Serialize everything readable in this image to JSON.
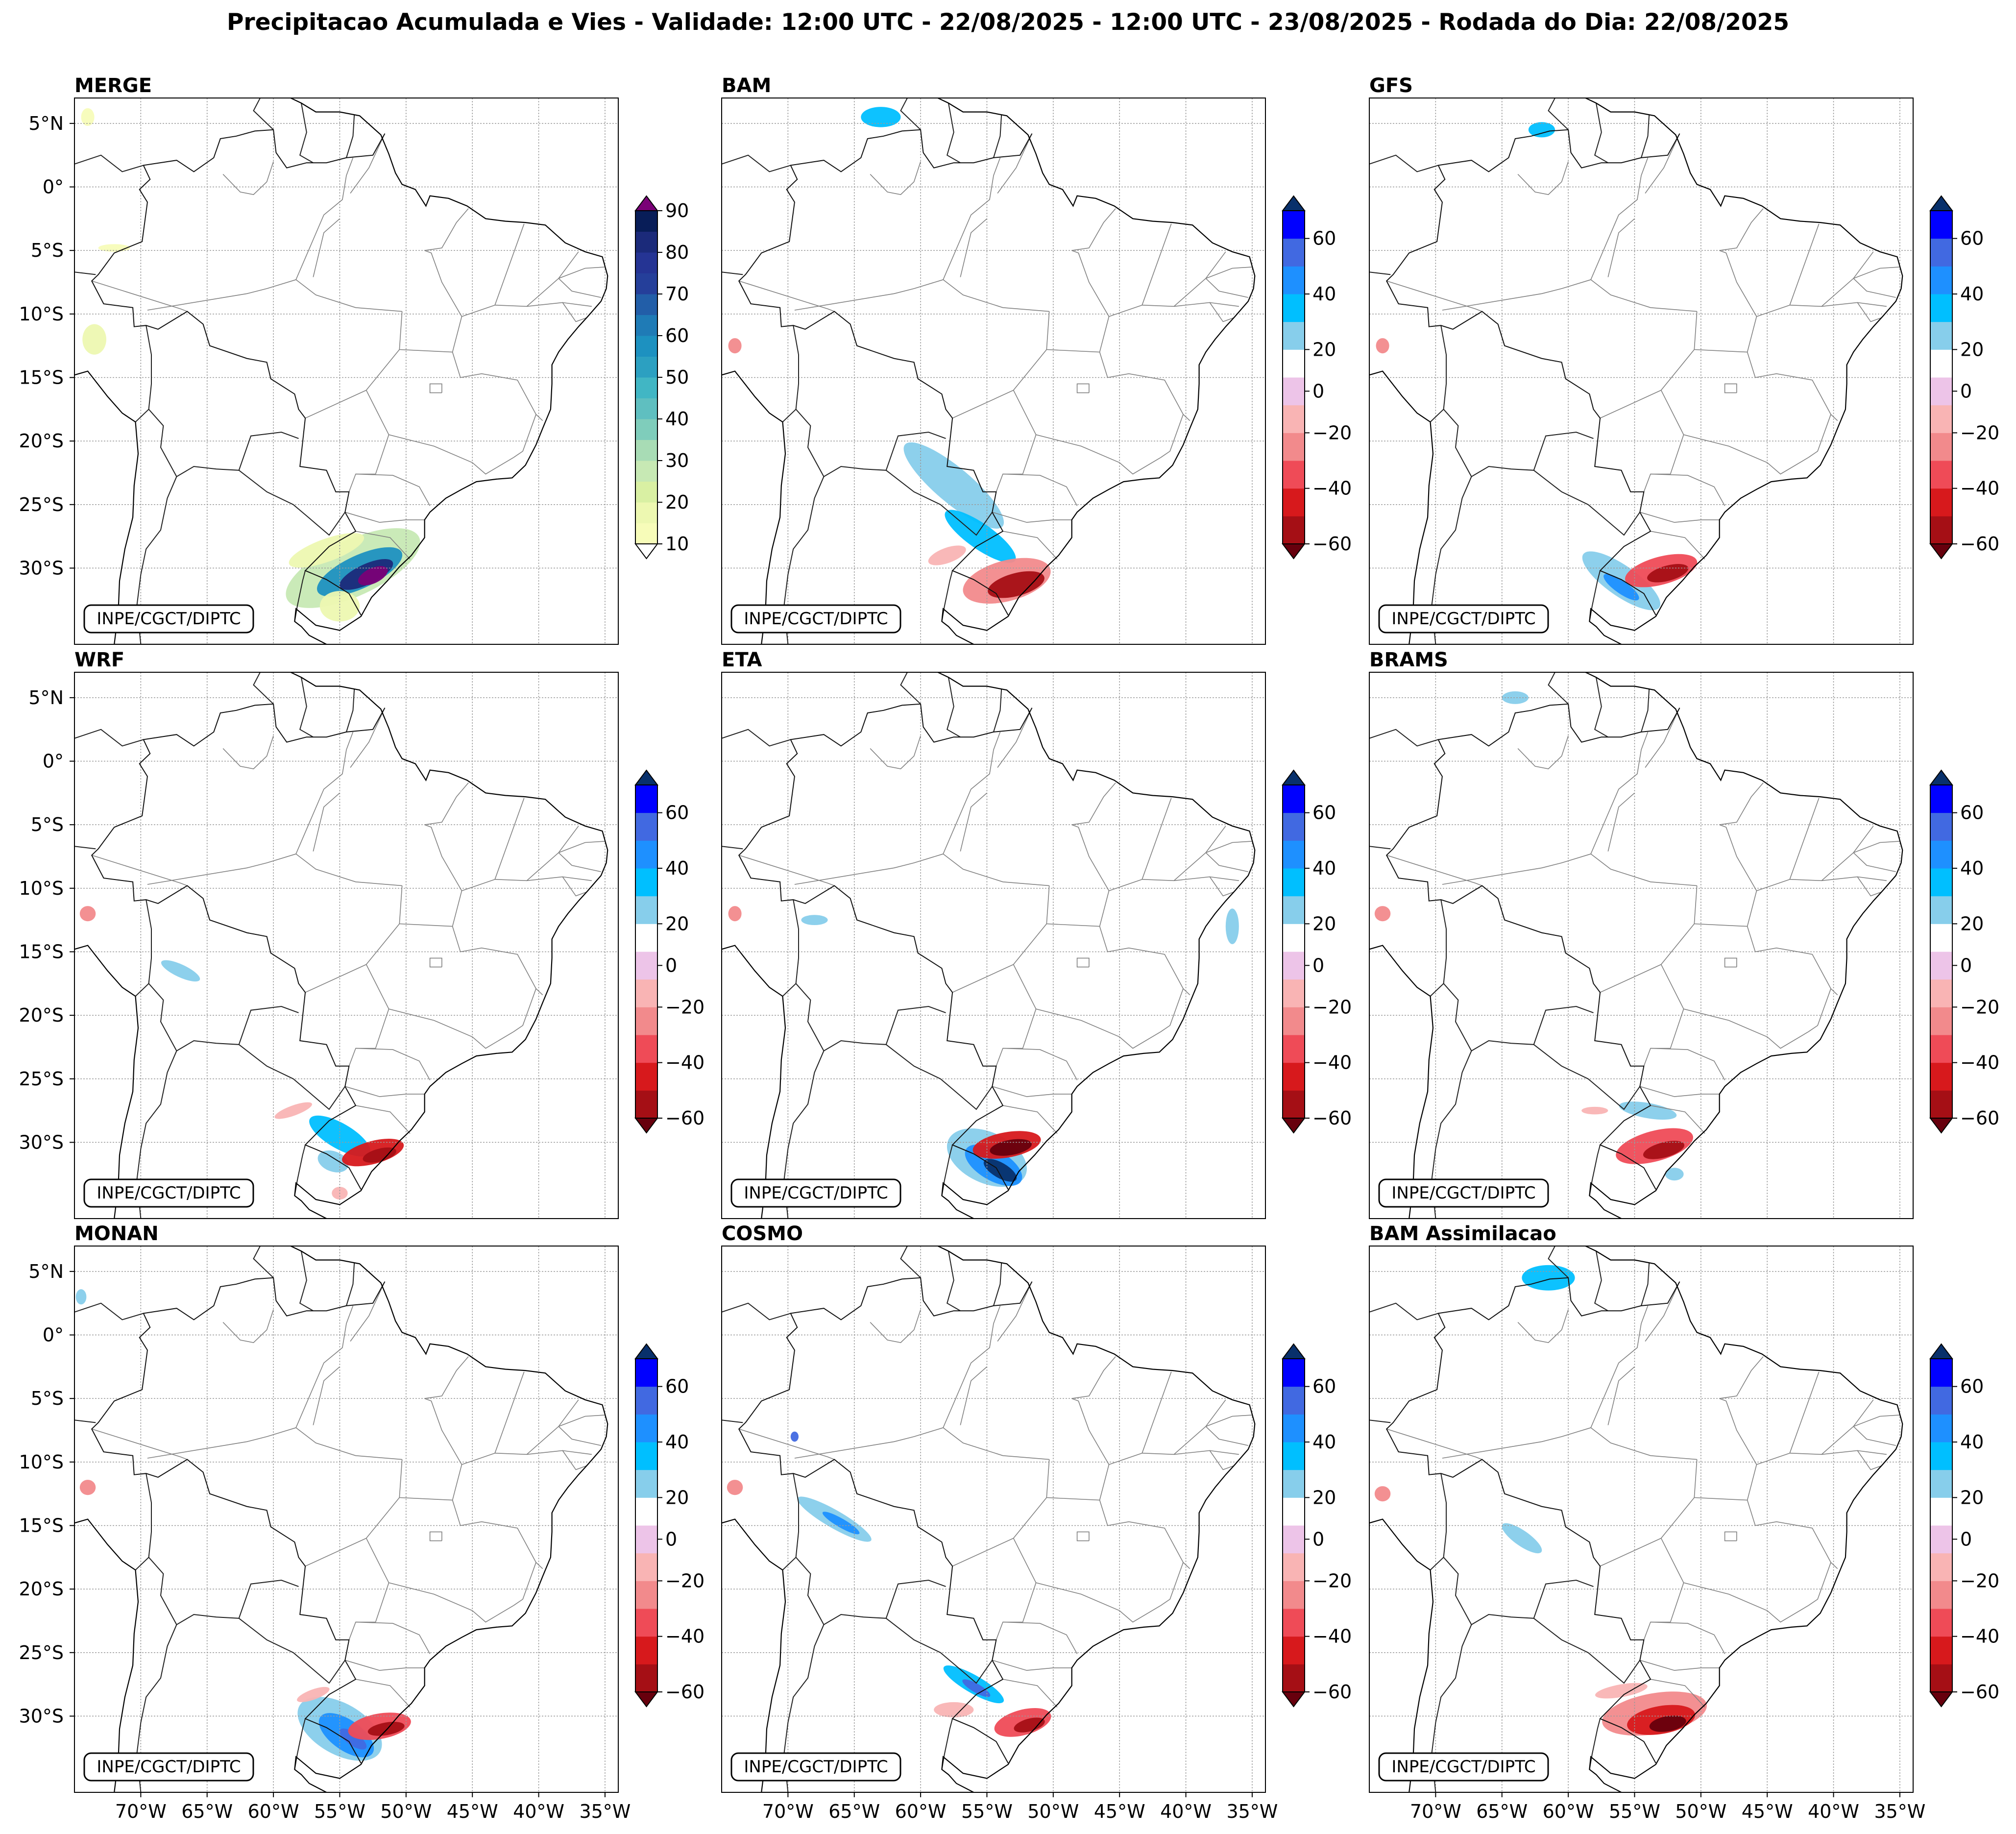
{
  "title": "Precipitacao Acumulada e Vies - Validade: 12:00 UTC - 22/08/2025 - 12:00 UTC - 23/08/2025 - Rodada do Dia: 22/08/2025",
  "chart_data": {
    "type": "map-grid",
    "credit": "INPE/CGCT/DIPTC",
    "region": {
      "lon_range": [
        -75,
        -34
      ],
      "lat_range": [
        -36,
        7
      ]
    },
    "lat_ticks": [
      "5°N",
      "0°",
      "5°S",
      "10°S",
      "15°S",
      "20°S",
      "25°S",
      "30°S"
    ],
    "lat_values": [
      5,
      0,
      -5,
      -10,
      -15,
      -20,
      -25,
      -30
    ],
    "lon_ticks": [
      "70°W",
      "65°W",
      "60°W",
      "55°W",
      "50°W",
      "45°W",
      "40°W",
      "35°W"
    ],
    "lon_values": [
      -70,
      -65,
      -60,
      -55,
      -50,
      -45,
      -40,
      -35
    ],
    "merge_colorbar": {
      "levels": [
        10,
        15,
        20,
        25,
        30,
        35,
        40,
        45,
        50,
        55,
        60,
        65,
        70,
        75,
        80,
        85,
        90
      ],
      "tick_labels": [
        "10",
        "20",
        "30",
        "40",
        "50",
        "60",
        "70",
        "80",
        "90"
      ],
      "colors": [
        "#f7fcb9",
        "#edf8b1",
        "#d9f0a3",
        "#c7e9b4",
        "#a8dcb5",
        "#7fcdbb",
        "#5fbfc0",
        "#41b6c4",
        "#2ca0c1",
        "#1d91c0",
        "#1f7bb6",
        "#225ea8",
        "#253f9a",
        "#253494",
        "#1b2a7a",
        "#081d58"
      ],
      "under_color": "#ffffff",
      "over_color": "#7a0177"
    },
    "bias_colorbar": {
      "levels": [
        -60,
        -50,
        -40,
        -30,
        -20,
        -10,
        10,
        20,
        30,
        40,
        50,
        60
      ],
      "tick_labels": [
        "-60",
        "-40",
        "-20",
        "0",
        "20",
        "40",
        "60"
      ],
      "tick_values": [
        -60,
        -40,
        -20,
        0,
        20,
        40,
        60
      ],
      "colors": [
        "#a50f15",
        "#d7191c",
        "#ef4b57",
        "#f28a8c",
        "#f9b4b4",
        "#edc4e8",
        "#ffffff",
        "#87ceeb",
        "#00bfff",
        "#1e90ff",
        "#4169e1",
        "#0000ff"
      ],
      "under_color": "#67000d",
      "over_color": "#08306b"
    },
    "panels": [
      {
        "name": "MERGE",
        "kind": "precip",
        "blobs": [
          {
            "lon": -54,
            "lat": -30,
            "rx": 5.5,
            "ry": 2.2,
            "rot": 25,
            "value": 25
          },
          {
            "lon": -53.5,
            "lat": -30.3,
            "rx": 3.5,
            "ry": 1.3,
            "rot": 25,
            "value": 55
          },
          {
            "lon": -53,
            "lat": -30.5,
            "rx": 2.2,
            "ry": 0.8,
            "rot": 25,
            "value": 80
          },
          {
            "lon": -52.5,
            "lat": -30.6,
            "rx": 1.2,
            "ry": 0.6,
            "rot": 25,
            "value": 95
          },
          {
            "lon": -56,
            "lat": -28.6,
            "rx": 3,
            "ry": 0.9,
            "rot": 20,
            "value": 15
          },
          {
            "lon": -55,
            "lat": -33,
            "rx": 1.5,
            "ry": 1.2,
            "rot": 0,
            "value": 18
          },
          {
            "lon": -73.5,
            "lat": -12,
            "rx": 0.9,
            "ry": 1.2,
            "rot": 0,
            "value": 15
          },
          {
            "lon": -72,
            "lat": -4.8,
            "rx": 1.2,
            "ry": 0.3,
            "rot": 0,
            "value": 12
          },
          {
            "lon": -74,
            "lat": 5.5,
            "rx": 0.5,
            "ry": 0.7,
            "rot": 0,
            "value": 12
          }
        ]
      },
      {
        "name": "BAM",
        "kind": "bias",
        "blobs": [
          {
            "lon": -71,
            "lat": 3,
            "rx": 4.5,
            "ry": 2.6,
            "rot": 20,
            "value": 15
          },
          {
            "lon": -64,
            "lat": 5.5,
            "rx": 4,
            "ry": 1.2,
            "rot": 0,
            "value": 15
          },
          {
            "lon": -63,
            "lat": 5.5,
            "rx": 1.5,
            "ry": 0.8,
            "rot": 0,
            "value": 35
          },
          {
            "lon": -73,
            "lat": -7.5,
            "rx": 1,
            "ry": 0.5,
            "rot": 0,
            "value": 15
          },
          {
            "lon": -65,
            "lat": -17,
            "rx": 3,
            "ry": 0.8,
            "rot": -30,
            "value": 15
          },
          {
            "lon": -57.5,
            "lat": -23.5,
            "rx": 4.8,
            "ry": 1.4,
            "rot": -40,
            "value": 20
          },
          {
            "lon": -55.5,
            "lat": -27.5,
            "rx": 3.2,
            "ry": 1.0,
            "rot": -35,
            "value": 35
          },
          {
            "lon": -53.5,
            "lat": -31,
            "rx": 3.4,
            "ry": 1.6,
            "rot": 15,
            "value": -30
          },
          {
            "lon": -52.8,
            "lat": -31.3,
            "rx": 2.2,
            "ry": 0.9,
            "rot": 15,
            "value": -55
          },
          {
            "lon": -58,
            "lat": -29,
            "rx": 1.5,
            "ry": 0.6,
            "rot": 20,
            "value": -15
          },
          {
            "lon": -74,
            "lat": -12.5,
            "rx": 0.5,
            "ry": 0.6,
            "rot": 0,
            "value": -25
          }
        ]
      },
      {
        "name": "GFS",
        "kind": "bias",
        "blobs": [
          {
            "lon": -72,
            "lat": 4,
            "rx": 2.6,
            "ry": 1.4,
            "rot": 0,
            "value": 15
          },
          {
            "lon": -64,
            "lat": 5,
            "rx": 3,
            "ry": 1.2,
            "rot": 0,
            "value": 15
          },
          {
            "lon": -62,
            "lat": 4.5,
            "rx": 1,
            "ry": 0.6,
            "rot": 0,
            "value": 30
          },
          {
            "lon": -66,
            "lat": -16,
            "rx": 0.7,
            "ry": 0.6,
            "rot": 0,
            "value": 15
          },
          {
            "lon": -56,
            "lat": -31,
            "rx": 3.5,
            "ry": 1.2,
            "rot": -35,
            "value": 25
          },
          {
            "lon": -56,
            "lat": -31.5,
            "rx": 1.6,
            "ry": 0.5,
            "rot": -35,
            "value": 40
          },
          {
            "lon": -53,
            "lat": -30.2,
            "rx": 2.8,
            "ry": 1.1,
            "rot": 15,
            "value": -40
          },
          {
            "lon": -52.5,
            "lat": -30.4,
            "rx": 1.6,
            "ry": 0.6,
            "rot": 15,
            "value": -58
          },
          {
            "lon": -74,
            "lat": -12.5,
            "rx": 0.5,
            "ry": 0.6,
            "rot": 0,
            "value": -25
          }
        ]
      },
      {
        "name": "WRF",
        "kind": "bias",
        "blobs": [
          {
            "lon": -71,
            "lat": 3.5,
            "rx": 3,
            "ry": 2,
            "rot": 0,
            "value": 15
          },
          {
            "lon": -66,
            "lat": 5.5,
            "rx": 3,
            "ry": 1,
            "rot": 0,
            "value": 15
          },
          {
            "lon": -74,
            "lat": -2,
            "rx": 1.2,
            "ry": 1,
            "rot": 0,
            "value": 15
          },
          {
            "lon": -67,
            "lat": -16.5,
            "rx": 1.6,
            "ry": 0.5,
            "rot": -25,
            "value": 25
          },
          {
            "lon": -56,
            "lat": -26,
            "rx": 2.2,
            "ry": 0.8,
            "rot": -40,
            "value": 15
          },
          {
            "lon": -55,
            "lat": -29.5,
            "rx": 2.6,
            "ry": 1,
            "rot": -30,
            "value": 35
          },
          {
            "lon": -55.5,
            "lat": -31.5,
            "rx": 1.2,
            "ry": 0.8,
            "rot": -20,
            "value": 25
          },
          {
            "lon": -52.5,
            "lat": -30.8,
            "rx": 2.4,
            "ry": 0.9,
            "rot": 15,
            "value": -45
          },
          {
            "lon": -52,
            "lat": -31,
            "rx": 1.3,
            "ry": 0.5,
            "rot": 15,
            "value": -58
          },
          {
            "lon": -58.5,
            "lat": -27.5,
            "rx": 1.5,
            "ry": 0.4,
            "rot": 20,
            "value": -15
          },
          {
            "lon": -74,
            "lat": -12,
            "rx": 0.6,
            "ry": 0.6,
            "rot": 0,
            "value": -25
          },
          {
            "lon": -55,
            "lat": -34,
            "rx": 0.6,
            "ry": 0.5,
            "rot": 0,
            "value": -15
          }
        ]
      },
      {
        "name": "ETA",
        "kind": "bias",
        "blobs": [
          {
            "lon": -71,
            "lat": 3.5,
            "rx": 3.5,
            "ry": 2.4,
            "rot": 0,
            "value": 15
          },
          {
            "lon": -63,
            "lat": 5,
            "rx": 3.8,
            "ry": 1.3,
            "rot": 0,
            "value": 15
          },
          {
            "lon": -68,
            "lat": -12.5,
            "rx": 1,
            "ry": 0.4,
            "rot": 0,
            "value": 25
          },
          {
            "lon": -55,
            "lat": -31.2,
            "rx": 3.2,
            "ry": 2.0,
            "rot": -25,
            "value": 25
          },
          {
            "lon": -54.5,
            "lat": -31.8,
            "rx": 2.4,
            "ry": 1.2,
            "rot": -30,
            "value": 45
          },
          {
            "lon": -54,
            "lat": -32.2,
            "rx": 1.4,
            "ry": 0.6,
            "rot": -30,
            "value": 62
          },
          {
            "lon": -53.5,
            "lat": -30.2,
            "rx": 2.6,
            "ry": 1.0,
            "rot": 10,
            "value": -45
          },
          {
            "lon": -53.2,
            "lat": -30.4,
            "rx": 1.6,
            "ry": 0.6,
            "rot": 10,
            "value": -62
          },
          {
            "lon": -36.5,
            "lat": -13,
            "rx": 0.5,
            "ry": 1.4,
            "rot": 0,
            "value": 25
          },
          {
            "lon": -74,
            "lat": -12,
            "rx": 0.5,
            "ry": 0.6,
            "rot": 0,
            "value": -25
          }
        ]
      },
      {
        "name": "BRAMS",
        "kind": "bias",
        "blobs": [
          {
            "lon": -64,
            "lat": 5,
            "rx": 1,
            "ry": 0.5,
            "rot": 0,
            "value": 25
          },
          {
            "lon": -54,
            "lat": -27.5,
            "rx": 2.2,
            "ry": 0.6,
            "rot": -10,
            "value": 20
          },
          {
            "lon": -53.5,
            "lat": -30.3,
            "rx": 3,
            "ry": 1.2,
            "rot": 15,
            "value": -35
          },
          {
            "lon": -52.8,
            "lat": -30.6,
            "rx": 1.6,
            "ry": 0.6,
            "rot": 15,
            "value": -58
          },
          {
            "lon": -52,
            "lat": -32.5,
            "rx": 0.7,
            "ry": 0.5,
            "rot": 0,
            "value": 25
          },
          {
            "lon": -74,
            "lat": -12,
            "rx": 0.6,
            "ry": 0.6,
            "rot": 0,
            "value": -25
          },
          {
            "lon": -58,
            "lat": -27.5,
            "rx": 1,
            "ry": 0.3,
            "rot": 0,
            "value": -15
          }
        ]
      },
      {
        "name": "MONAN",
        "kind": "bias",
        "blobs": [
          {
            "lon": -74.5,
            "lat": 3,
            "rx": 0.4,
            "ry": 0.6,
            "rot": 0,
            "value": 25
          },
          {
            "lon": -68,
            "lat": 5.3,
            "rx": 0.8,
            "ry": 0.4,
            "rot": 0,
            "value": 15
          },
          {
            "lon": -55,
            "lat": -31,
            "rx": 3.5,
            "ry": 2.0,
            "rot": -30,
            "value": 25
          },
          {
            "lon": -54.5,
            "lat": -31.5,
            "rx": 2.4,
            "ry": 1.2,
            "rot": -35,
            "value": 40
          },
          {
            "lon": -54,
            "lat": -31.8,
            "rx": 1.2,
            "ry": 0.5,
            "rot": -35,
            "value": 55
          },
          {
            "lon": -52,
            "lat": -30.8,
            "rx": 2.4,
            "ry": 1.0,
            "rot": 10,
            "value": -40
          },
          {
            "lon": -51.5,
            "lat": -31,
            "rx": 1.4,
            "ry": 0.5,
            "rot": 10,
            "value": -58
          },
          {
            "lon": -57,
            "lat": -28.3,
            "rx": 1.3,
            "ry": 0.4,
            "rot": 20,
            "value": -15
          },
          {
            "lon": -74,
            "lat": -12,
            "rx": 0.6,
            "ry": 0.6,
            "rot": 0,
            "value": -25
          }
        ]
      },
      {
        "name": "COSMO",
        "kind": "bias",
        "blobs": [
          {
            "lon": -71,
            "lat": 3.8,
            "rx": 2.8,
            "ry": 1.6,
            "rot": 0,
            "value": 15
          },
          {
            "lon": -64.5,
            "lat": 4.8,
            "rx": 2.8,
            "ry": 1.2,
            "rot": 0,
            "value": 15
          },
          {
            "lon": -66.5,
            "lat": -14.5,
            "rx": 3.2,
            "ry": 0.7,
            "rot": -30,
            "value": 25
          },
          {
            "lon": -66,
            "lat": -14.8,
            "rx": 1.6,
            "ry": 0.35,
            "rot": -30,
            "value": 45
          },
          {
            "lon": -69.5,
            "lat": -8,
            "rx": 0.3,
            "ry": 0.4,
            "rot": 0,
            "value": 50
          },
          {
            "lon": -56,
            "lat": -27.5,
            "rx": 2.6,
            "ry": 0.7,
            "rot": -30,
            "value": 30
          },
          {
            "lon": -55.8,
            "lat": -27.8,
            "rx": 1.2,
            "ry": 0.35,
            "rot": -30,
            "value": 50
          },
          {
            "lon": -52.3,
            "lat": -30.5,
            "rx": 2.2,
            "ry": 1.0,
            "rot": 15,
            "value": -40
          },
          {
            "lon": -51.8,
            "lat": -30.7,
            "rx": 1.2,
            "ry": 0.5,
            "rot": 15,
            "value": -58
          },
          {
            "lon": -57.5,
            "lat": -29.5,
            "rx": 1.5,
            "ry": 0.6,
            "rot": 0,
            "value": -15
          },
          {
            "lon": -74,
            "lat": -12,
            "rx": 0.6,
            "ry": 0.6,
            "rot": 0,
            "value": -25
          }
        ]
      },
      {
        "name": "BAM Assimilacao",
        "kind": "bias",
        "blobs": [
          {
            "lon": -71,
            "lat": 4,
            "rx": 3.5,
            "ry": 2.4,
            "rot": 0,
            "value": 15
          },
          {
            "lon": -62.5,
            "lat": 4,
            "rx": 4,
            "ry": 2.3,
            "rot": 0,
            "value": 15
          },
          {
            "lon": -61.5,
            "lat": 4.5,
            "rx": 2,
            "ry": 1,
            "rot": 0,
            "value": 30
          },
          {
            "lon": -70,
            "lat": -8.5,
            "rx": 3.6,
            "ry": 1.5,
            "rot": 0,
            "value": 15
          },
          {
            "lon": -64,
            "lat": -6,
            "rx": 2,
            "ry": 0.9,
            "rot": 0,
            "value": 15
          },
          {
            "lon": -57.5,
            "lat": -4.5,
            "rx": 1.2,
            "ry": 0.5,
            "rot": 0,
            "value": 15
          },
          {
            "lon": -51,
            "lat": -4,
            "rx": 1,
            "ry": 0.4,
            "rot": 0,
            "value": 15
          },
          {
            "lon": -60,
            "lat": -11.5,
            "rx": 1.4,
            "ry": 0.8,
            "rot": 0,
            "value": 15
          },
          {
            "lon": -64,
            "lat": -15.5,
            "rx": 3.5,
            "ry": 1.6,
            "rot": -35,
            "value": 15
          },
          {
            "lon": -63.5,
            "lat": -16,
            "rx": 1.8,
            "ry": 0.6,
            "rot": -35,
            "value": 25
          },
          {
            "lon": -42,
            "lat": -3.5,
            "rx": 1.4,
            "ry": 0.8,
            "rot": 0,
            "value": 15
          },
          {
            "lon": -49,
            "lat": -26,
            "rx": 1.6,
            "ry": 0.9,
            "rot": -30,
            "value": 15
          },
          {
            "lon": -53.5,
            "lat": -29.8,
            "rx": 4,
            "ry": 1.6,
            "rot": 10,
            "value": -30
          },
          {
            "lon": -53,
            "lat": -30.3,
            "rx": 2.6,
            "ry": 1.1,
            "rot": 10,
            "value": -50
          },
          {
            "lon": -52.5,
            "lat": -30.6,
            "rx": 1.4,
            "ry": 0.6,
            "rot": 10,
            "value": -62
          },
          {
            "lon": -56,
            "lat": -28,
            "rx": 2,
            "ry": 0.5,
            "rot": 10,
            "value": -15
          },
          {
            "lon": -74,
            "lat": -12.5,
            "rx": 0.6,
            "ry": 0.6,
            "rot": 0,
            "value": -25
          }
        ]
      }
    ]
  }
}
